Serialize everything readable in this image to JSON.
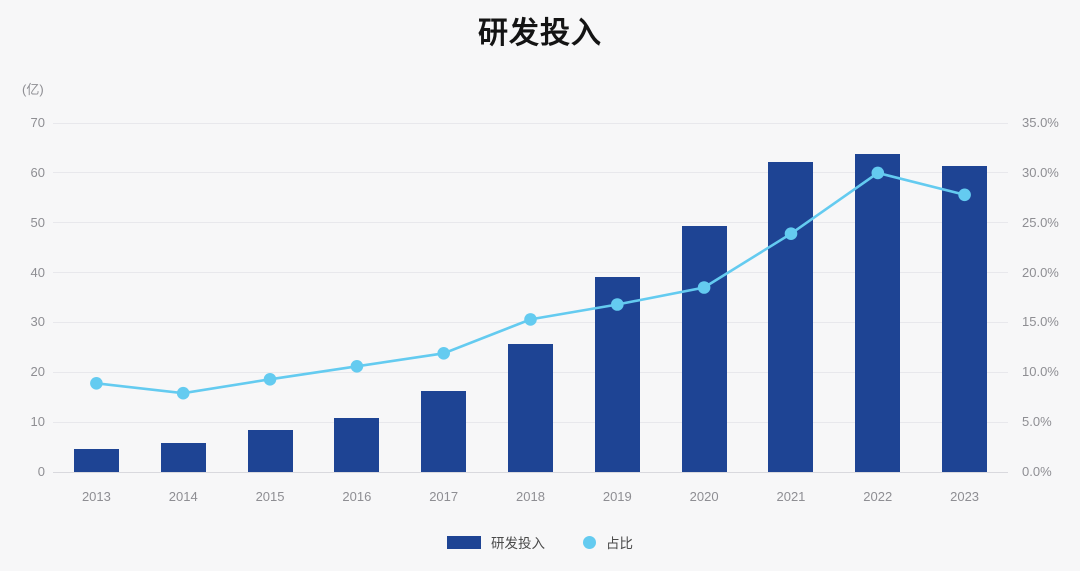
{
  "page": {
    "background": "#f7f7f8"
  },
  "chart_data": {
    "type": "combo-bar-line",
    "title": "研发投入",
    "categories": [
      "2013",
      "2014",
      "2015",
      "2016",
      "2017",
      "2018",
      "2019",
      "2020",
      "2021",
      "2022",
      "2023"
    ],
    "series": [
      {
        "name": "研发投入",
        "type": "bar",
        "axis": "left",
        "color": "#1e4494",
        "values": [
          4.7,
          5.8,
          8.4,
          10.8,
          16.2,
          25.6,
          39.1,
          49.4,
          62.2,
          63.7,
          61.3
        ]
      },
      {
        "name": "占比",
        "type": "line",
        "axis": "right",
        "color": "#64cbf0",
        "values": [
          8.9,
          7.9,
          9.3,
          10.6,
          11.9,
          15.3,
          16.8,
          18.5,
          23.9,
          30.0,
          27.8
        ]
      }
    ],
    "left_axis": {
      "unit": "(亿)",
      "min": 0,
      "max": 70,
      "step": 10,
      "tick_labels": [
        "0",
        "10",
        "20",
        "30",
        "40",
        "50",
        "60",
        "70"
      ]
    },
    "right_axis": {
      "min": 0,
      "max": 35,
      "step": 5,
      "tick_labels": [
        "0.0%",
        "5.0%",
        "10.0%",
        "15.0%",
        "20.0%",
        "25.0%",
        "30.0%",
        "35.0%"
      ]
    },
    "grid": true,
    "legend_position": "bottom",
    "colors": {
      "gridline": "#e8e8ec",
      "axis_line": "#d9d9de",
      "tick_text": "#8e8e93",
      "title_text": "#141414",
      "legend_text": "#4a4a4a"
    }
  }
}
